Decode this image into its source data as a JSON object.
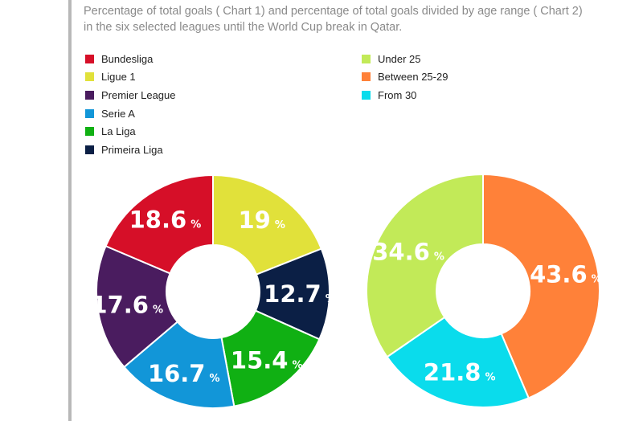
{
  "title_lines": [
    "Percentage of total goals ( Chart 1) and percentage of total goals divided by age range ( Chart 2)",
    "in the six selected leagues until the World Cup break in Qatar."
  ],
  "chart_data": [
    {
      "type": "pie",
      "title": "Chart 1",
      "unit": "%",
      "categories": [
        "Bundesliga",
        "Ligue 1",
        "Premier League",
        "Serie A",
        "La Liga",
        "Primeira Liga"
      ],
      "colors": [
        "#d60f28",
        "#e1e13a",
        "#4a1c5f",
        "#1296d8",
        "#10b013",
        "#0b1f45"
      ],
      "slices_clockwise_from_top": [
        {
          "label": "Ligue 1",
          "value": 19,
          "text": "19",
          "color": "#e1e13a"
        },
        {
          "label": "Primeira Liga",
          "value": 12.7,
          "text": "12.7",
          "color": "#0b1f45"
        },
        {
          "label": "La Liga",
          "value": 15.4,
          "text": "15.4",
          "color": "#10b013"
        },
        {
          "label": "Serie A",
          "value": 16.7,
          "text": "16.7",
          "color": "#1296d8"
        },
        {
          "label": "Premier League",
          "value": 17.6,
          "text": "17.6",
          "color": "#4a1c5f"
        },
        {
          "label": "Bundesliga",
          "value": 18.6,
          "text": "18.6",
          "color": "#d60f28"
        }
      ]
    },
    {
      "type": "pie",
      "title": "Chart 2",
      "unit": "%",
      "categories": [
        "Under 25",
        "Between 25-29",
        "From 30"
      ],
      "colors": [
        "#c2ea58",
        "#ff8139",
        "#0adcec"
      ],
      "slices_clockwise_from_top": [
        {
          "label": "Between 25-29",
          "value": 43.6,
          "text": "43.6",
          "color": "#ff8139"
        },
        {
          "label": "From 30",
          "value": 21.8,
          "text": "21.8",
          "color": "#0adcec"
        },
        {
          "label": "Under 25",
          "value": 34.6,
          "text": "34.6",
          "color": "#c2ea58"
        }
      ]
    }
  ]
}
